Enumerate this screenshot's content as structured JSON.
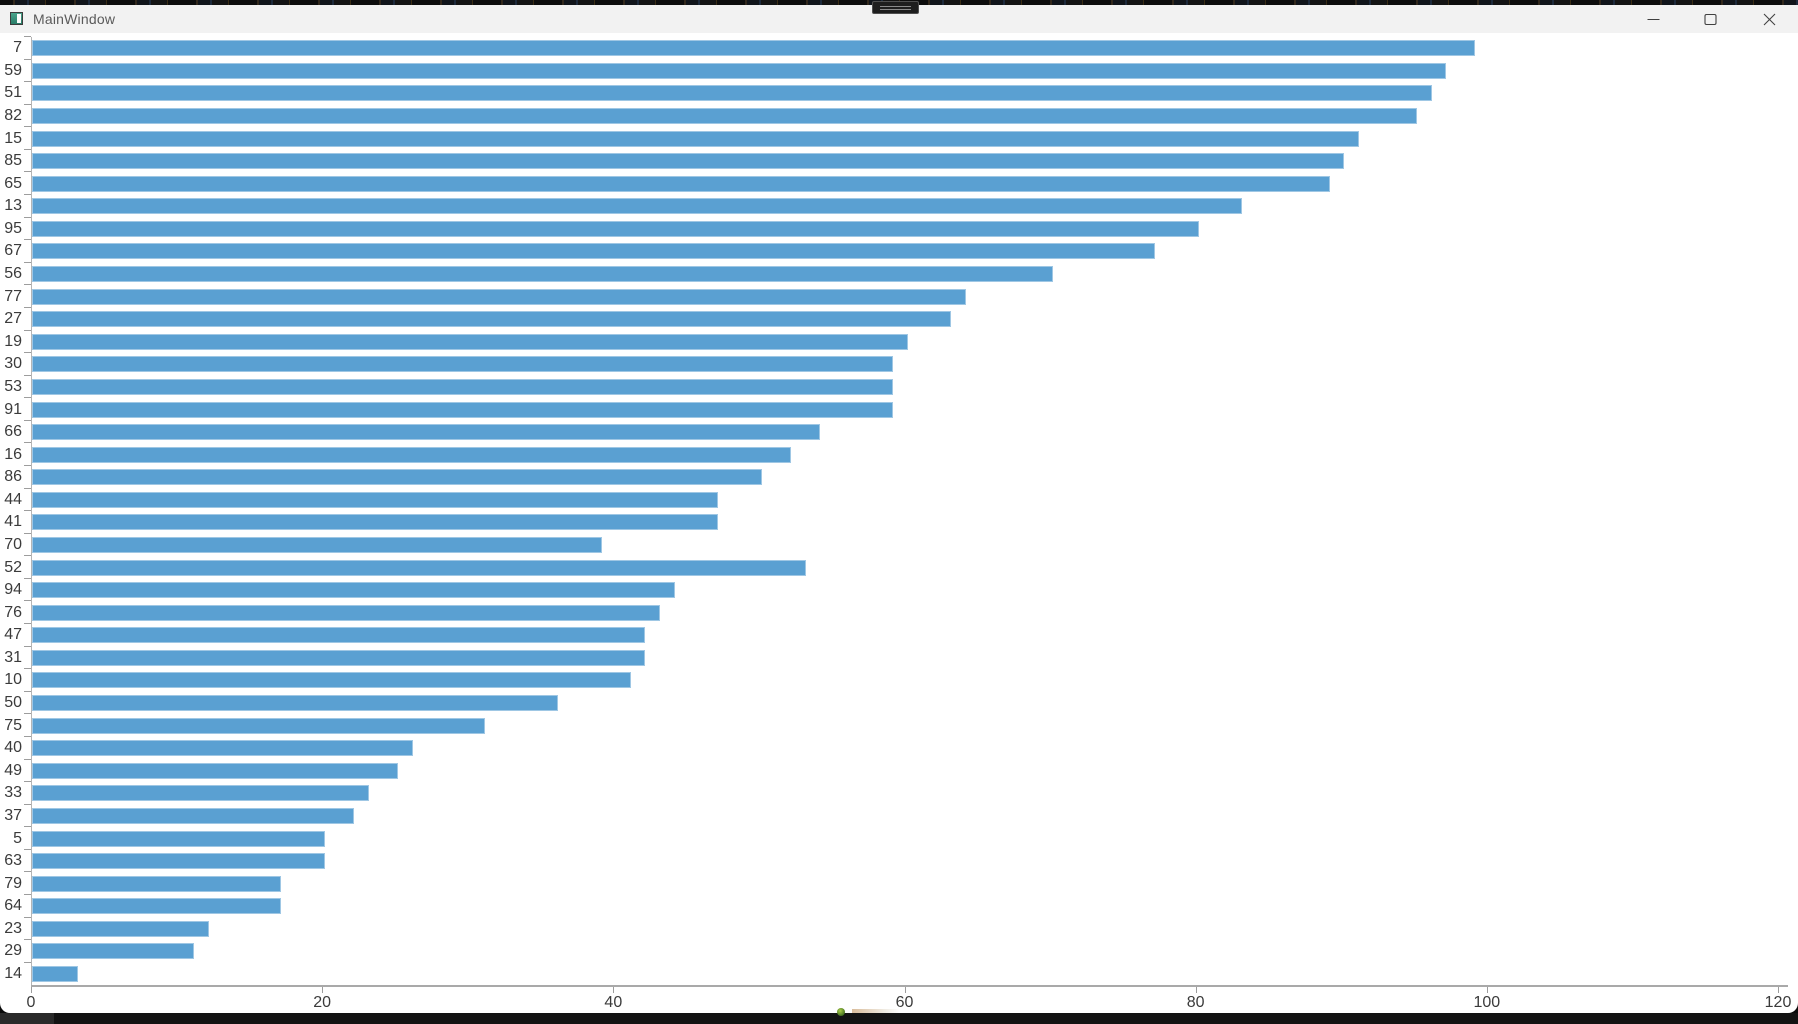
{
  "window": {
    "title": "MainWindow"
  },
  "chart_data": {
    "type": "bar",
    "orientation": "horizontal",
    "title": "",
    "xlabel": "",
    "ylabel": "",
    "categories": [
      "7",
      "59",
      "51",
      "82",
      "15",
      "85",
      "65",
      "13",
      "95",
      "67",
      "56",
      "77",
      "27",
      "19",
      "30",
      "53",
      "91",
      "66",
      "16",
      "86",
      "44",
      "41",
      "70",
      "52",
      "94",
      "76",
      "47",
      "31",
      "10",
      "50",
      "75",
      "40",
      "49",
      "33",
      "37",
      "5",
      "63",
      "79",
      "64",
      "23",
      "29",
      "14"
    ],
    "values": [
      99,
      97,
      96,
      95,
      91,
      90,
      89,
      83,
      80,
      77,
      70,
      64,
      63,
      60,
      59,
      59,
      59,
      54,
      52,
      50,
      47,
      47,
      39,
      53,
      44,
      43,
      42,
      42,
      41,
      36,
      31,
      26,
      25,
      23,
      22,
      20,
      20,
      17,
      17,
      12,
      11,
      3
    ],
    "xlim": [
      0,
      120
    ],
    "x_ticks": [
      0,
      20,
      40,
      60,
      80,
      100,
      120
    ],
    "grid": false,
    "legend": "none",
    "bar_color": "#5aa0d2",
    "bar_border_color": "#9fc7e4",
    "axis_color": "#a9a9a9",
    "tick_color": "#9d9d9d",
    "label_color": "#3b3b3b"
  }
}
